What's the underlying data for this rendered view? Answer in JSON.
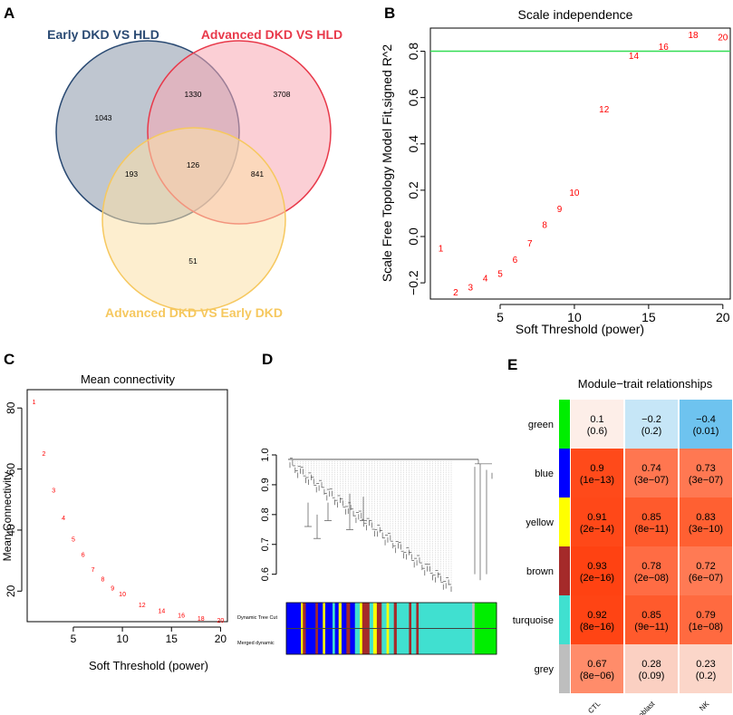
{
  "colors": {
    "venn_early": "#2a4a73",
    "venn_early_fill": "#8b98aa",
    "venn_adv": "#e8394a",
    "venn_adv_fill": "#f7a7b2",
    "venn_early_dkd": "#f6c85f",
    "venn_early_dkd_fill": "#fbe0a8",
    "points": "#ff0000",
    "threshold_line": "#33dd55"
  },
  "panel_labels": {
    "a": "A",
    "b": "B",
    "c": "C",
    "d": "D",
    "e": "E"
  },
  "chart_data": [
    {
      "id": "A",
      "type": "venn",
      "sets": [
        {
          "name": "Early DKD VS HLD"
        },
        {
          "name": "Advanced DKD VS HLD"
        },
        {
          "name": "Advanced DKD VS Early DKD"
        }
      ],
      "regions": {
        "early_only": "1043",
        "early_adv": "1330",
        "adv_only": "3708",
        "all_three": "126",
        "early_earlydkd": "193",
        "adv_earlydkd": "841",
        "earlydkd_only": "51"
      }
    },
    {
      "id": "B",
      "type": "scatter",
      "title": "Scale independence",
      "xlabel": "Soft Threshold (power)",
      "ylabel": "Scale Free Topology Model Fit,signed R^2",
      "xlim": [
        0.3,
        20.5
      ],
      "ylim": [
        -0.27,
        0.9
      ],
      "xticks": [
        5,
        10,
        15,
        20
      ],
      "yticks": [
        -0.2,
        0.0,
        0.2,
        0.4,
        0.6,
        0.8
      ],
      "ytick_labels": [
        "−0.2",
        "0.0",
        "0.2",
        "0.4",
        "0.6",
        "0.8"
      ],
      "hline": 0.8,
      "points": [
        {
          "label": "1",
          "x": 1,
          "y": -0.05
        },
        {
          "label": "2",
          "x": 2,
          "y": -0.24
        },
        {
          "label": "3",
          "x": 3,
          "y": -0.22
        },
        {
          "label": "4",
          "x": 4,
          "y": -0.18
        },
        {
          "label": "5",
          "x": 5,
          "y": -0.16
        },
        {
          "label": "6",
          "x": 6,
          "y": -0.1
        },
        {
          "label": "7",
          "x": 7,
          "y": -0.03
        },
        {
          "label": "8",
          "x": 8,
          "y": 0.05
        },
        {
          "label": "9",
          "x": 9,
          "y": 0.12
        },
        {
          "label": "10",
          "x": 10,
          "y": 0.19
        },
        {
          "label": "12",
          "x": 12,
          "y": 0.55
        },
        {
          "label": "14",
          "x": 14,
          "y": 0.78
        },
        {
          "label": "16",
          "x": 16,
          "y": 0.82
        },
        {
          "label": "18",
          "x": 18,
          "y": 0.87
        },
        {
          "label": "20",
          "x": 20,
          "y": 0.86
        }
      ]
    },
    {
      "id": "C",
      "type": "scatter",
      "title": "Mean connectivity",
      "xlabel": "Soft Threshold (power)",
      "ylabel": "Mean Connectivity",
      "xlim": [
        0.3,
        20.7
      ],
      "ylim": [
        10,
        86
      ],
      "xticks": [
        5,
        10,
        15,
        20
      ],
      "yticks": [
        20,
        40,
        60,
        80
      ],
      "points": [
        {
          "label": "1",
          "x": 1,
          "y": 82
        },
        {
          "label": "2",
          "x": 2,
          "y": 65
        },
        {
          "label": "3",
          "x": 3,
          "y": 53
        },
        {
          "label": "4",
          "x": 4,
          "y": 44
        },
        {
          "label": "5",
          "x": 5,
          "y": 37
        },
        {
          "label": "6",
          "x": 6,
          "y": 32
        },
        {
          "label": "7",
          "x": 7,
          "y": 27
        },
        {
          "label": "8",
          "x": 8,
          "y": 24
        },
        {
          "label": "9",
          "x": 9,
          "y": 21
        },
        {
          "label": "10",
          "x": 10,
          "y": 19
        },
        {
          "label": "12",
          "x": 12,
          "y": 15.5
        },
        {
          "label": "14",
          "x": 14,
          "y": 13.5
        },
        {
          "label": "16",
          "x": 16,
          "y": 12
        },
        {
          "label": "18",
          "x": 18,
          "y": 11
        },
        {
          "label": "20",
          "x": 20,
          "y": 10.5
        }
      ]
    },
    {
      "id": "D",
      "type": "dendrogram",
      "ylim": [
        0.52,
        1.0
      ],
      "yticks": [
        0.6,
        0.7,
        0.8,
        0.9,
        1.0
      ],
      "ytick_labels": [
        "0.6",
        "0.7",
        "0.8",
        "0.9",
        "1.0"
      ],
      "color_rows": [
        "Dynamic Tree Cut",
        "Merged dynamic"
      ],
      "module_colors": {
        "blue": "#0000ff",
        "yellow": "#ffff00",
        "brown": "#a52a2a",
        "turquoise": "#40e0d0",
        "green": "#00ee00",
        "grey": "#bebebe"
      },
      "color_bar": [
        [
          "blue",
          0.06
        ],
        [
          "yellow",
          0.008
        ],
        [
          "brown",
          0.012
        ],
        [
          "blue",
          0.04
        ],
        [
          "brown",
          0.01
        ],
        [
          "blue",
          0.02
        ],
        [
          "yellow",
          0.01
        ],
        [
          "blue",
          0.03
        ],
        [
          "turquoise",
          0.01
        ],
        [
          "blue",
          0.015
        ],
        [
          "yellow",
          0.012
        ],
        [
          "blue",
          0.02
        ],
        [
          "brown",
          0.015
        ],
        [
          "blue",
          0.02
        ],
        [
          "turquoise",
          0.02
        ],
        [
          "yellow",
          0.01
        ],
        [
          "brown",
          0.03
        ],
        [
          "turquoise",
          0.015
        ],
        [
          "yellow",
          0.015
        ],
        [
          "brown",
          0.02
        ],
        [
          "turquoise",
          0.02
        ],
        [
          "yellow",
          0.01
        ],
        [
          "turquoise",
          0.02
        ],
        [
          "brown",
          0.012
        ],
        [
          "turquoise",
          0.05
        ],
        [
          "brown",
          0.01
        ],
        [
          "turquoise",
          0.02
        ],
        [
          "brown",
          0.01
        ],
        [
          "turquoise",
          0.22
        ],
        [
          "grey",
          0.01
        ],
        [
          "green",
          0.09
        ]
      ]
    },
    {
      "id": "E",
      "type": "heatmap",
      "title": "Module−trait relationships",
      "columns": [
        "CTL",
        "Fibroblast",
        "NK"
      ],
      "rows": [
        {
          "module": "green",
          "swatch": "#00ee00",
          "cells": [
            {
              "value": "0.1",
              "p": "(0.6)",
              "fill": "#fdeee8"
            },
            {
              "value": "−0.2",
              "p": "(0.2)",
              "fill": "#c6e6f7"
            },
            {
              "value": "−0.4",
              "p": "(0.01)",
              "fill": "#6ec3ef"
            }
          ]
        },
        {
          "module": "blue",
          "swatch": "#0000ff",
          "cells": [
            {
              "value": "0.9",
              "p": "(1e−13)",
              "fill": "#ff4a1a"
            },
            {
              "value": "0.74",
              "p": "(3e−07)",
              "fill": "#ff7650"
            },
            {
              "value": "0.73",
              "p": "(3e−07)",
              "fill": "#ff7852"
            }
          ]
        },
        {
          "module": "yellow",
          "swatch": "#ffff00",
          "cells": [
            {
              "value": "0.91",
              "p": "(2e−14)",
              "fill": "#ff4818"
            },
            {
              "value": "0.85",
              "p": "(8e−11)",
              "fill": "#ff5a2c"
            },
            {
              "value": "0.83",
              "p": "(3e−10)",
              "fill": "#ff6032"
            }
          ]
        },
        {
          "module": "brown",
          "swatch": "#a52a2a",
          "cells": [
            {
              "value": "0.93",
              "p": "(2e−16)",
              "fill": "#ff4212"
            },
            {
              "value": "0.78",
              "p": "(2e−08)",
              "fill": "#ff6c44"
            },
            {
              "value": "0.72",
              "p": "(6e−07)",
              "fill": "#ff7a54"
            }
          ]
        },
        {
          "module": "turquoise",
          "swatch": "#40e0d0",
          "cells": [
            {
              "value": "0.92",
              "p": "(8e−16)",
              "fill": "#ff4414"
            },
            {
              "value": "0.85",
              "p": "(9e−11)",
              "fill": "#ff5a2c"
            },
            {
              "value": "0.79",
              "p": "(1e−08)",
              "fill": "#ff6a40"
            }
          ]
        },
        {
          "module": "grey",
          "swatch": "#bebebe",
          "cells": [
            {
              "value": "0.67",
              "p": "(8e−06)",
              "fill": "#ff8c6a"
            },
            {
              "value": "0.28",
              "p": "(0.09)",
              "fill": "#fbd0c2"
            },
            {
              "value": "0.23",
              "p": "(0.2)",
              "fill": "#fbd6c9"
            }
          ]
        }
      ]
    }
  ]
}
